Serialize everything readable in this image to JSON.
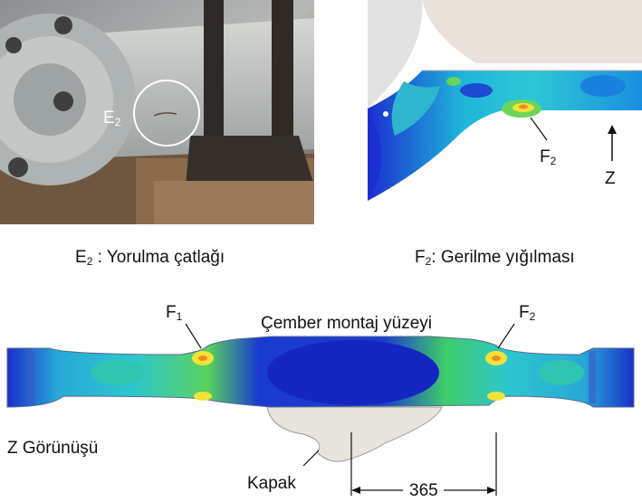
{
  "photo": {
    "label_E": "E",
    "label_E_sub": "2"
  },
  "fea_top": {
    "label_F": "F",
    "label_F_sub": "2",
    "label_Z": "Z"
  },
  "captions": {
    "left_main": "E",
    "left_sub": "2",
    "left_text": " : Yorulma çatlağı",
    "right_main": "F",
    "right_sub": "2",
    "right_text": ": Gerilme yığılması"
  },
  "bottom": {
    "F1_main": "F",
    "F1_sub": "1",
    "F2_main": "F",
    "F2_sub": "2",
    "mount_surface": "Çember montaj yüzeyi",
    "view_label": "Z Görünüşü",
    "cover_label": "Kapak",
    "dimension": "365"
  },
  "colors": {
    "contour_blue": "#1a2fc8",
    "contour_cyan": "#18b8d8",
    "contour_green": "#4fd06a",
    "contour_yellow": "#f2e23a",
    "contour_orange": "#f08a20",
    "housing": "#e9e4dc"
  }
}
